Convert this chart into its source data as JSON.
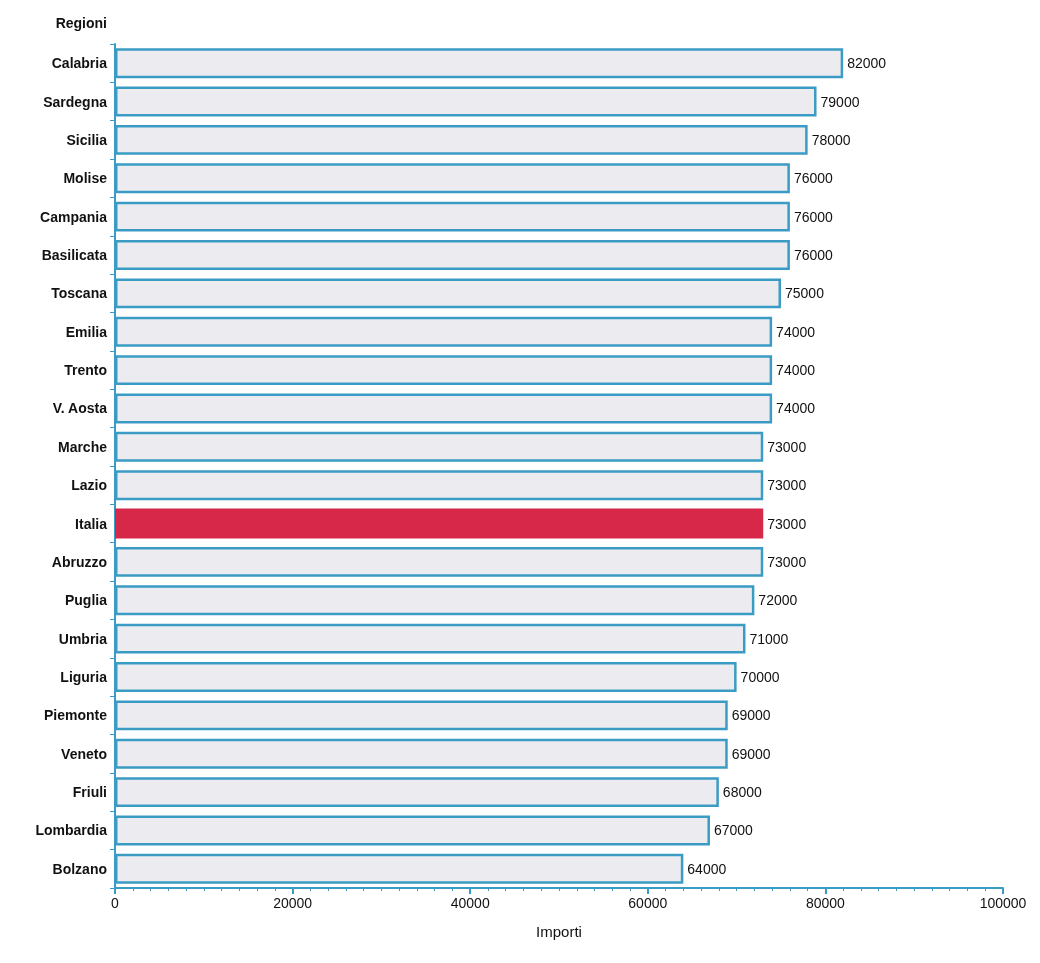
{
  "chart_data": {
    "type": "bar",
    "orientation": "horizontal",
    "xlabel": "Importi",
    "ylabel": "Regioni",
    "categories": [
      "Calabria",
      "Sardegna",
      "Sicilia",
      "Molise",
      "Campania",
      "Basilicata",
      "Toscana",
      "Emilia",
      "Trento",
      "V. Aosta",
      "Marche",
      "Lazio",
      "Italia",
      "Abruzzo",
      "Puglia",
      "Umbria",
      "Liguria",
      "Piemonte",
      "Veneto",
      "Friuli",
      "Lombardia",
      "Bolzano"
    ],
    "values": [
      82000,
      79000,
      78000,
      76000,
      76000,
      76000,
      75000,
      74000,
      74000,
      74000,
      73000,
      73000,
      73000,
      73000,
      72000,
      71000,
      70000,
      69000,
      69000,
      68000,
      67000,
      64000
    ],
    "colors": [
      "#ececf0",
      "#ececf0",
      "#ececf0",
      "#ececf0",
      "#ececf0",
      "#ececf0",
      "#ececf0",
      "#ececf0",
      "#ececf0",
      "#ececf0",
      "#ececf0",
      "#ececf0",
      "#d8284a",
      "#ececf0",
      "#ececf0",
      "#ececf0",
      "#ececf0",
      "#ececf0",
      "#ececf0",
      "#ececf0",
      "#ececf0",
      "#ececf0"
    ],
    "xlim": [
      0,
      100000
    ],
    "xticks": [
      0,
      20000,
      40000,
      60000,
      80000,
      100000
    ],
    "data_labels": true
  }
}
